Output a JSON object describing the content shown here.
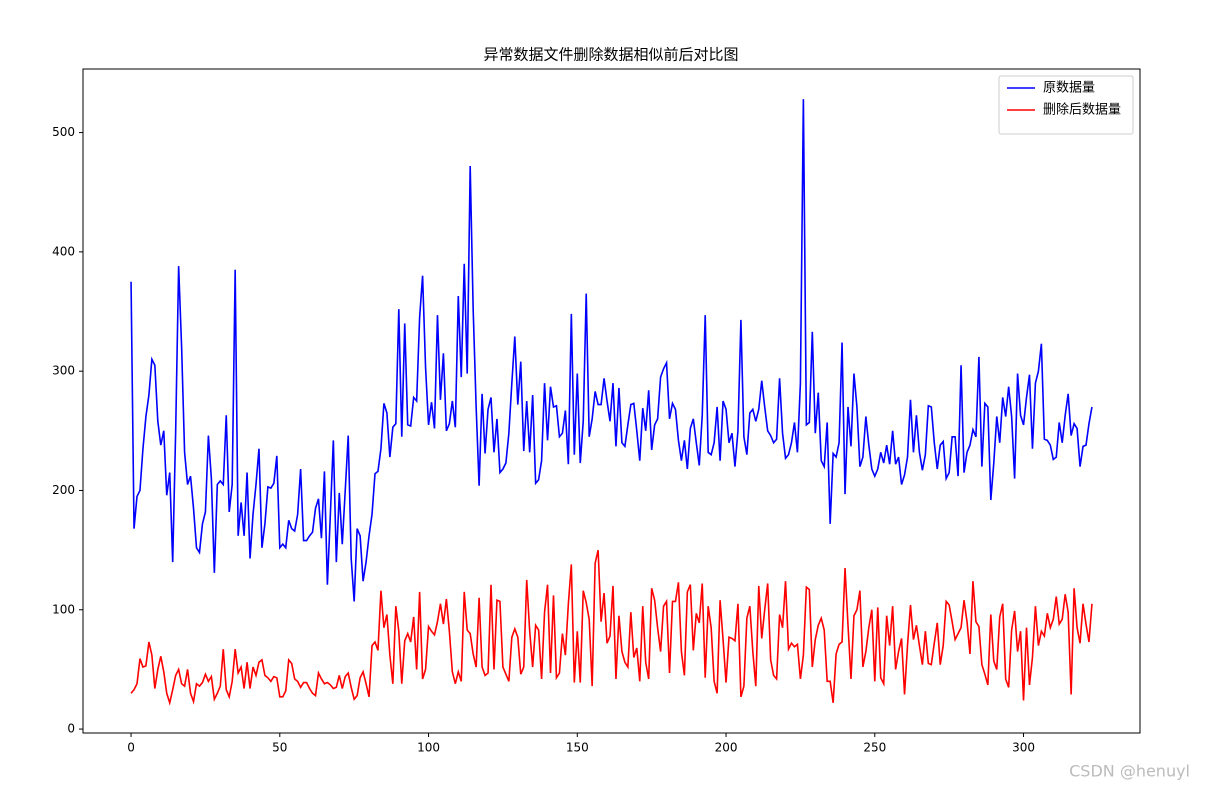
{
  "chart_data": {
    "type": "line",
    "title": "异常数据文件删除数据相似前后对比图",
    "watermark": "CSDN @henuyl",
    "legend": "upper right",
    "xlim": [
      -16.15,
      339.15
    ],
    "xticks": [
      0,
      50,
      100,
      150,
      200,
      250,
      300
    ],
    "ylim": [
      -3.3,
      553.3
    ],
    "yticks": [
      0,
      100,
      200,
      300,
      400,
      500
    ],
    "x": [
      0,
      1,
      2,
      3,
      4,
      5,
      6,
      7,
      8,
      9,
      10,
      11,
      12,
      13,
      14,
      15,
      16,
      17,
      18,
      19,
      20,
      21,
      22,
      23,
      24,
      25,
      26,
      27,
      28,
      29,
      30,
      31,
      32,
      33,
      34,
      35,
      36,
      37,
      38,
      39,
      40,
      41,
      42,
      43,
      44,
      45,
      46,
      47,
      48,
      49,
      50,
      51,
      52,
      53,
      54,
      55,
      56,
      57,
      58,
      59,
      60,
      61,
      62,
      63,
      64,
      65,
      66,
      67,
      68,
      69,
      70,
      71,
      72,
      73,
      74,
      75,
      76,
      77,
      78,
      79,
      80,
      81,
      82,
      83,
      84,
      85,
      86,
      87,
      88,
      89,
      90,
      91,
      92,
      93,
      94,
      95,
      96,
      97,
      98,
      99,
      100,
      101,
      102,
      103,
      104,
      105,
      106,
      107,
      108,
      109,
      110,
      111,
      112,
      113,
      114,
      115,
      116,
      117,
      118,
      119,
      120,
      121,
      122,
      123,
      124,
      125,
      126,
      127,
      128,
      129,
      130,
      131,
      132,
      133,
      134,
      135,
      136,
      137,
      138,
      139,
      140,
      141,
      142,
      143,
      144,
      145,
      146,
      147,
      148,
      149,
      150,
      151,
      152,
      153,
      154,
      155,
      156,
      157,
      158,
      159,
      160,
      161,
      162,
      163,
      164,
      165,
      166,
      167,
      168,
      169,
      170,
      171,
      172,
      173,
      174,
      175,
      176,
      177,
      178,
      179,
      180,
      181,
      182,
      183,
      184,
      185,
      186,
      187,
      188,
      189,
      190,
      191,
      192,
      193,
      194,
      195,
      196,
      197,
      198,
      199,
      200,
      201,
      202,
      203,
      204,
      205,
      206,
      207,
      208,
      209,
      210,
      211,
      212,
      213,
      214,
      215,
      216,
      217,
      218,
      219,
      220,
      221,
      222,
      223,
      224,
      225,
      226,
      227,
      228,
      229,
      230,
      231,
      232,
      233,
      234,
      235,
      236,
      237,
      238,
      239,
      240,
      241,
      242,
      243,
      244,
      245,
      246,
      247,
      248,
      249,
      250,
      251,
      252,
      253,
      254,
      255,
      256,
      257,
      258,
      259,
      260,
      261,
      262,
      263,
      264,
      265,
      266,
      267,
      268,
      269,
      270,
      271,
      272,
      273,
      274,
      275,
      276,
      277,
      278,
      279,
      280,
      281,
      282,
      283,
      284,
      285,
      286,
      287,
      288,
      289,
      290,
      291,
      292,
      293,
      294,
      295,
      296,
      297,
      298,
      299,
      300,
      301,
      302,
      303,
      304,
      305,
      306,
      307,
      308,
      309,
      310,
      311,
      312,
      313,
      314,
      315,
      316,
      317,
      318,
      319,
      320,
      321,
      322,
      323
    ],
    "series": [
      {
        "name": "原数据量",
        "color": "#0000ff",
        "values": [
          375,
          168,
          195,
          200,
          235,
          262,
          280,
          310,
          305,
          258,
          238,
          250,
          196,
          215,
          140,
          250,
          388,
          320,
          232,
          205,
          212,
          185,
          152,
          148,
          172,
          182,
          246,
          210,
          131,
          205,
          208,
          205,
          263,
          182,
          205,
          385,
          162,
          190,
          162,
          215,
          143,
          180,
          205,
          235,
          152,
          172,
          203,
          202,
          206,
          229,
          152,
          155,
          152,
          175,
          168,
          166,
          180,
          218,
          158,
          158,
          162,
          165,
          185,
          193,
          160,
          216,
          121,
          180,
          242,
          140,
          198,
          155,
          200,
          246,
          143,
          107,
          168,
          162,
          124,
          140,
          162,
          180,
          214,
          216,
          235,
          273,
          265,
          228,
          253,
          256,
          352,
          245,
          340,
          255,
          254,
          278,
          275,
          345,
          380,
          303,
          255,
          274,
          252,
          347,
          276,
          315,
          250,
          256,
          275,
          253,
          363,
          295,
          390,
          298,
          472,
          352,
          270,
          204,
          281,
          231,
          268,
          278,
          232,
          260,
          215,
          218,
          223,
          248,
          290,
          329,
          272,
          308,
          233,
          275,
          232,
          280,
          206,
          209,
          225,
          290,
          242,
          287,
          270,
          271,
          245,
          248,
          267,
          222,
          348,
          230,
          298,
          223,
          258,
          365,
          245,
          260,
          283,
          272,
          272,
          294,
          275,
          258,
          290,
          237,
          286,
          240,
          237,
          255,
          272,
          273,
          250,
          225,
          269,
          250,
          284,
          234,
          255,
          260,
          295,
          302,
          307,
          260,
          273,
          268,
          242,
          225,
          242,
          218,
          252,
          260,
          240,
          221,
          263,
          347,
          232,
          230,
          240,
          270,
          225,
          275,
          268,
          240,
          248,
          220,
          250,
          343,
          245,
          230,
          265,
          268,
          258,
          268,
          292,
          270,
          250,
          246,
          240,
          243,
          294,
          248,
          227,
          230,
          240,
          257,
          232,
          290,
          528,
          255,
          257,
          333,
          248,
          282,
          225,
          220,
          257,
          172,
          231,
          228,
          240,
          324,
          197,
          270,
          237,
          298,
          270,
          220,
          228,
          262,
          238,
          218,
          212,
          218,
          232,
          223,
          238,
          222,
          250,
          222,
          228,
          205,
          213,
          228,
          276,
          232,
          263,
          232,
          217,
          230,
          271,
          270,
          240,
          218,
          238,
          241,
          210,
          215,
          245,
          245,
          212,
          305,
          215,
          232,
          238,
          251,
          245,
          312,
          220,
          273,
          270,
          192,
          223,
          262,
          240,
          278,
          262,
          287,
          262,
          210,
          298,
          263,
          255,
          278,
          297,
          235,
          290,
          300,
          323,
          243,
          242,
          238,
          226,
          228,
          257,
          240,
          263,
          281,
          246,
          256,
          252,
          220,
          237,
          238,
          256,
          270
        ]
      },
      {
        "name": "删除后数据量",
        "color": "#ff0000",
        "values": [
          30,
          33,
          38,
          59,
          52,
          53,
          73,
          62,
          34,
          50,
          61,
          48,
          30,
          22,
          33,
          45,
          50,
          38,
          36,
          50,
          30,
          23,
          38,
          36,
          39,
          46,
          40,
          44,
          25,
          30,
          36,
          67,
          33,
          27,
          40,
          67,
          47,
          52,
          34,
          56,
          34,
          52,
          45,
          56,
          58,
          45,
          43,
          40,
          44,
          43,
          27,
          27,
          32,
          58,
          55,
          42,
          40,
          35,
          39,
          39,
          34,
          30,
          28,
          47,
          42,
          38,
          39,
          37,
          34,
          35,
          45,
          34,
          44,
          47,
          35,
          25,
          28,
          43,
          48,
          38,
          27,
          70,
          73,
          66,
          116,
          85,
          96,
          62,
          38,
          103,
          82,
          38,
          74,
          80,
          73,
          94,
          50,
          115,
          42,
          50,
          86,
          82,
          79,
          90,
          105,
          88,
          109,
          82,
          48,
          38,
          48,
          40,
          115,
          83,
          80,
          63,
          52,
          110,
          52,
          45,
          47,
          121,
          50,
          108,
          107,
          52,
          46,
          40,
          77,
          84,
          77,
          46,
          52,
          125,
          82,
          52,
          87,
          83,
          42,
          98,
          121,
          47,
          112,
          43,
          47,
          80,
          62,
          105,
          138,
          39,
          82,
          39,
          116,
          106,
          92,
          36,
          139,
          150,
          90,
          114,
          72,
          78,
          120,
          42,
          95,
          65,
          56,
          52,
          98,
          60,
          68,
          40,
          103,
          56,
          42,
          118,
          108,
          85,
          65,
          103,
          107,
          47,
          107,
          107,
          123,
          65,
          45,
          115,
          121,
          66,
          97,
          89,
          122,
          43,
          103,
          85,
          40,
          30,
          108,
          75,
          39,
          77,
          76,
          74,
          105,
          27,
          36,
          93,
          103,
          65,
          36,
          120,
          76,
          100,
          122,
          58,
          45,
          42,
          96,
          85,
          124,
          67,
          72,
          69,
          71,
          42,
          62,
          119,
          117,
          52,
          75,
          87,
          93,
          83,
          40,
          40,
          22,
          63,
          71,
          73,
          135,
          87,
          42,
          95,
          100,
          116,
          52,
          65,
          85,
          100,
          40,
          102,
          43,
          38,
          95,
          70,
          103,
          50,
          65,
          76,
          29,
          70,
          104,
          75,
          87,
          70,
          54,
          82,
          55,
          54,
          72,
          89,
          54,
          70,
          107,
          104,
          90,
          75,
          80,
          85,
          108,
          90,
          63,
          124,
          90,
          86,
          54,
          46,
          37,
          96,
          57,
          50,
          94,
          105,
          42,
          35,
          83,
          99,
          65,
          82,
          24,
          85,
          37,
          60,
          103,
          70,
          82,
          78,
          97,
          85,
          92,
          111,
          88,
          92,
          113,
          98,
          29,
          118,
          85,
          72,
          105,
          88,
          73,
          105
        ]
      }
    ]
  }
}
